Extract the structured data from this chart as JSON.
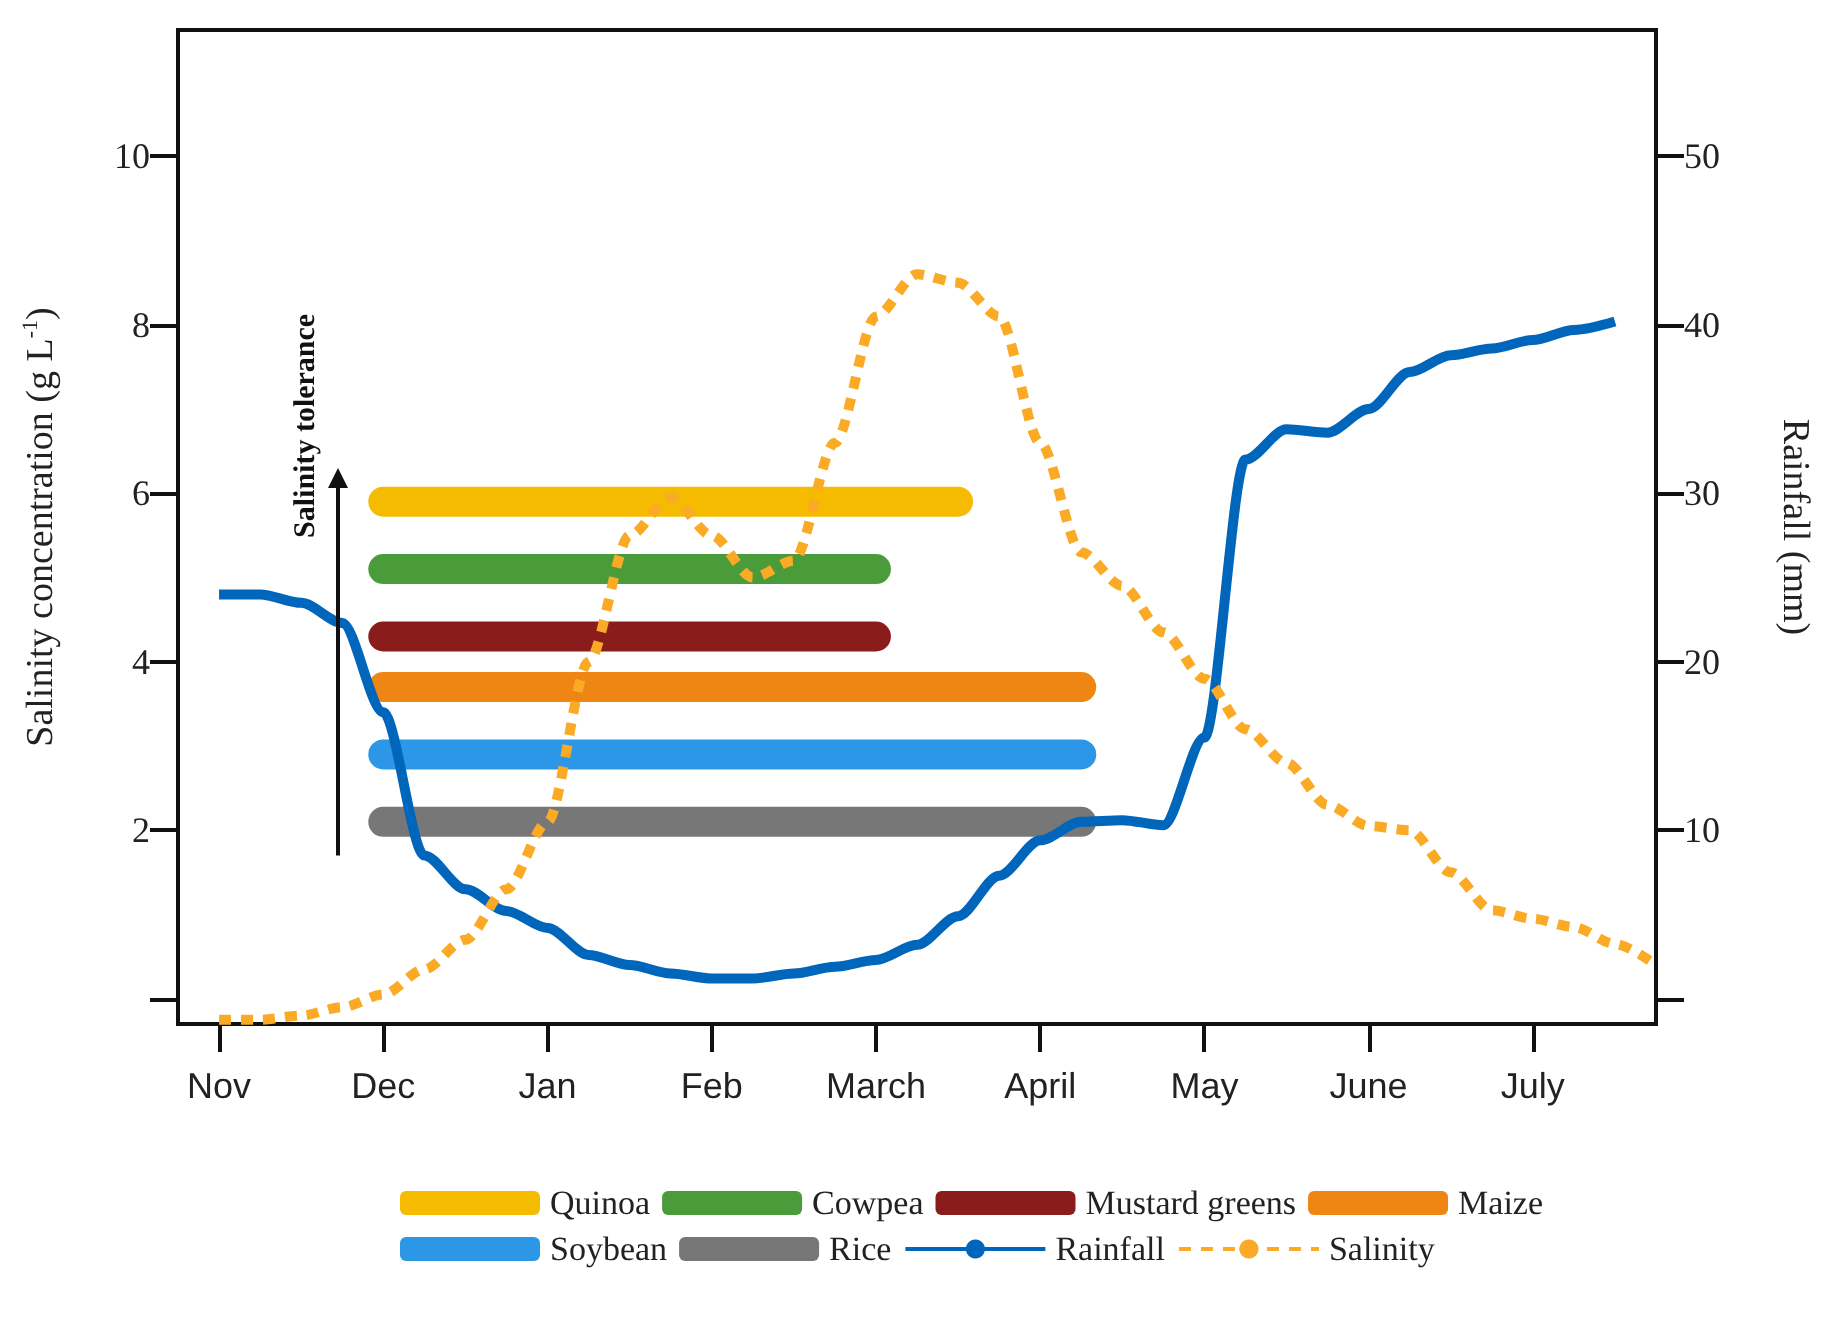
{
  "chart_data": {
    "type": "line",
    "ylabel": "Salinity concentration (g L$^{-1}$)",
    "y2label": "Rainfall (mm)",
    "annotations": [
      "Salinity tolerance"
    ],
    "categories": [
      null,
      "Nov",
      null,
      null,
      null,
      "Dec",
      null,
      null,
      null,
      "Jan",
      null,
      null,
      null,
      "Feb",
      null,
      null,
      null,
      "March",
      null,
      null,
      null,
      "April",
      null,
      null,
      null,
      "May",
      null,
      null,
      null,
      "June",
      null,
      null,
      null,
      "July",
      null,
      null,
      null
    ],
    "ylim": [
      -0.3,
      11.5
    ],
    "yticks": [
      {
        "value": 0,
        "label": null
      },
      2,
      4,
      6,
      8,
      10
    ],
    "y2lim": [
      -1.5,
      57.5
    ],
    "y2ticks": [
      {
        "value": 0,
        "label": null
      },
      10,
      20,
      30,
      40,
      50
    ],
    "grid": false,
    "legend": "bottom",
    "marker": "none",
    "series": [
      {
        "name": "Quinoa",
        "color": "#f5bb00",
        "values": [
          null,
          null,
          null,
          null,
          null,
          5.9,
          5.9,
          5.9,
          5.9,
          5.9,
          5.9,
          5.9,
          5.9,
          5.9,
          5.9,
          5.9,
          5.9,
          5.9,
          5.9,
          5.9,
          null,
          null,
          null,
          null,
          null,
          null,
          null,
          null,
          null,
          null,
          null,
          null,
          null,
          null,
          null,
          null,
          null
        ]
      },
      {
        "name": "Cowpea",
        "color": "#4a9c3b",
        "values": [
          null,
          null,
          null,
          null,
          null,
          5.1,
          5.1,
          5.1,
          5.1,
          5.1,
          5.1,
          5.1,
          5.1,
          5.1,
          5.1,
          5.1,
          5.1,
          5.1,
          null,
          null,
          null,
          null,
          null,
          null,
          null,
          null,
          null,
          null,
          null,
          null,
          null,
          null,
          null,
          null,
          null,
          null,
          null
        ]
      },
      {
        "name": "Mustard greens",
        "color": "#8b1c1c",
        "values": [
          null,
          null,
          null,
          null,
          null,
          4.3,
          4.3,
          4.3,
          4.3,
          4.3,
          4.3,
          4.3,
          4.3,
          4.3,
          4.3,
          4.3,
          4.3,
          4.3,
          null,
          null,
          null,
          null,
          null,
          null,
          null,
          null,
          null,
          null,
          null,
          null,
          null,
          null,
          null,
          null,
          null,
          null,
          null
        ]
      },
      {
        "name": "Maize",
        "color": "#ef8513",
        "values": [
          null,
          null,
          null,
          null,
          null,
          3.7,
          3.7,
          3.7,
          3.7,
          3.7,
          3.7,
          3.7,
          3.7,
          3.7,
          3.7,
          3.7,
          3.7,
          3.7,
          3.7,
          3.7,
          3.7,
          3.7,
          3.7,
          null,
          null,
          null,
          null,
          null,
          null,
          null,
          null,
          null,
          null,
          null,
          null,
          null,
          null
        ]
      },
      {
        "name": "Soybean",
        "color": "#2b97e6",
        "values": [
          null,
          null,
          null,
          null,
          null,
          2.9,
          2.9,
          2.9,
          2.9,
          2.9,
          2.9,
          2.9,
          2.9,
          2.9,
          2.9,
          2.9,
          2.9,
          2.9,
          2.9,
          2.9,
          2.9,
          2.9,
          2.9,
          null,
          null,
          null,
          null,
          null,
          null,
          null,
          null,
          null,
          null,
          null,
          null,
          null,
          null
        ]
      },
      {
        "name": "Rice",
        "color": "#777777",
        "values": [
          null,
          null,
          null,
          null,
          null,
          2.1,
          2.1,
          2.1,
          2.1,
          2.1,
          2.1,
          2.1,
          2.1,
          2.1,
          2.1,
          2.1,
          2.1,
          2.1,
          2.1,
          2.1,
          2.1,
          2.1,
          2.1,
          null,
          null,
          null,
          null,
          null,
          null,
          null,
          null,
          null,
          null,
          null,
          null,
          null,
          null
        ]
      },
      {
        "name": "Rainfall",
        "color": "#0066bb",
        "axis": "y2",
        "line_style": "solid",
        "values": [
          null,
          24.0,
          24.0,
          23.5,
          22.3,
          17.0,
          8.5,
          6.5,
          5.2,
          4.2,
          2.6,
          2.0,
          1.5,
          1.2,
          1.2,
          1.5,
          1.9,
          2.3,
          3.2,
          4.9,
          7.3,
          9.4,
          10.5,
          10.6,
          10.3,
          15.5,
          32.0,
          33.8,
          33.6,
          35.0,
          37.2,
          38.2,
          38.6,
          39.1,
          39.7,
          40.2,
          null
        ]
      },
      {
        "name": "Salinity",
        "color": "#fbaa25",
        "line_style": "dotted",
        "values": [
          null,
          -0.25,
          -0.25,
          -0.2,
          -0.1,
          0.05,
          0.35,
          0.7,
          1.3,
          2.1,
          4.0,
          5.5,
          5.95,
          5.5,
          5.0,
          5.2,
          6.6,
          8.1,
          8.6,
          8.5,
          8.1,
          6.6,
          5.3,
          4.9,
          4.35,
          3.8,
          3.2,
          2.8,
          2.3,
          2.05,
          2.0,
          1.5,
          1.05,
          0.95,
          0.85,
          0.65,
          0.4
        ]
      }
    ]
  }
}
